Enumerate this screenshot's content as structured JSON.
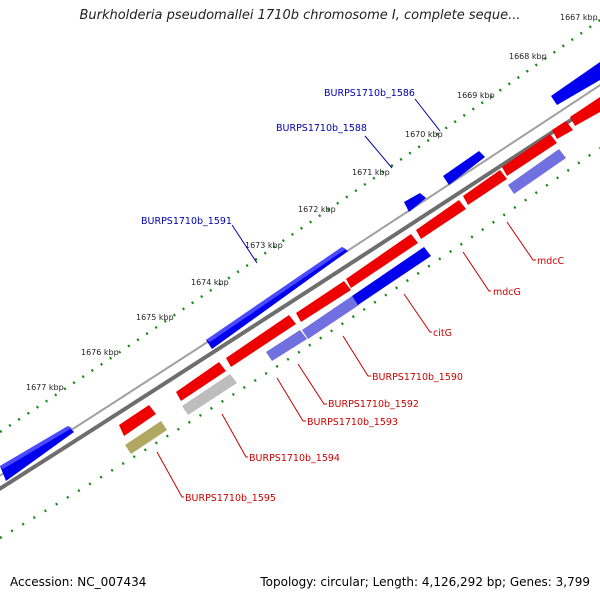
{
  "title": "Burkholderia pseudomallei 1710b chromosome I, complete seque...",
  "footer": {
    "accession": "Accession: NC_007434",
    "topology": "Topology: circular; Length: 4,126,292 bp; Genes: 3,799"
  },
  "ticks": [
    {
      "label": "1667 kbp"
    },
    {
      "label": "1668 kbp"
    },
    {
      "label": "1669 kbp"
    },
    {
      "label": "1670 kbp"
    },
    {
      "label": "1671 kbp"
    },
    {
      "label": "1672 kbp"
    },
    {
      "label": "1673 kbp"
    },
    {
      "label": "1674 kbp"
    },
    {
      "label": "1675 kbp"
    },
    {
      "label": "1676 kbp"
    },
    {
      "label": "1677 kbp"
    }
  ],
  "colors": {
    "forward_gene": "#0000ee",
    "reverse_gene": "#ee0000",
    "rna_like": "#7070e0",
    "pseudo_gray": "#b8b8b8",
    "pseudo_olive": "#b0a860",
    "backbone": "#808080",
    "tick_green": "#1a8a1a",
    "label_blue": "#0000aa",
    "label_red": "#cc0000"
  },
  "labels": [
    {
      "text": "BURPS1710b_1586",
      "strand": "forward"
    },
    {
      "text": "BURPS1710b_1588",
      "strand": "forward"
    },
    {
      "text": "BURPS1710b_1591",
      "strand": "forward"
    },
    {
      "text": "mdcC",
      "strand": "reverse"
    },
    {
      "text": "mdcG",
      "strand": "reverse"
    },
    {
      "text": "citG",
      "strand": "reverse"
    },
    {
      "text": "BURPS1710b_1590",
      "strand": "reverse"
    },
    {
      "text": "BURPS1710b_1592",
      "strand": "reverse"
    },
    {
      "text": "BURPS1710b_1593",
      "strand": "reverse"
    },
    {
      "text": "BURPS1710b_1594",
      "strand": "reverse"
    },
    {
      "text": "BURPS1710b_1595",
      "strand": "reverse"
    }
  ]
}
